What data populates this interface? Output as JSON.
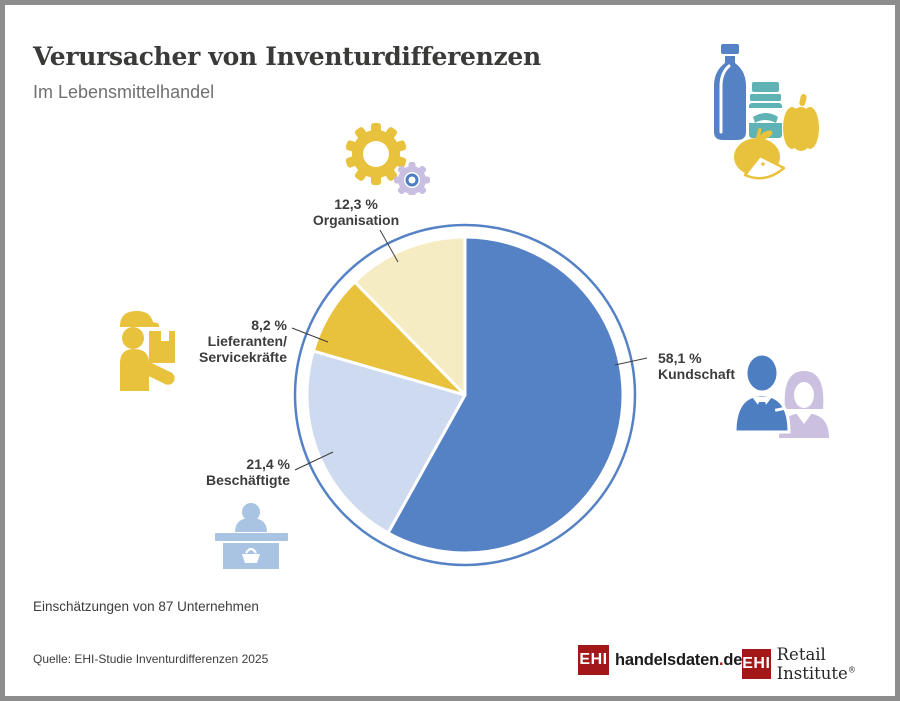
{
  "header": {
    "title": "Verursacher von Inventurdifferenzen",
    "subtitle": "Im Lebensmittelhandel"
  },
  "chart_data": {
    "type": "pie",
    "title": "Verursacher von Inventurdifferenzen",
    "subtitle": "Im Lebensmittelhandel",
    "unit": "percent",
    "start_angle": "top",
    "direction": "clockwise",
    "slices": [
      {
        "label": "Kundschaft",
        "value": 58.1,
        "display": "58,1 %",
        "color": "#5582c5"
      },
      {
        "label": "Beschäftigte",
        "value": 21.4,
        "display": "21,4 %",
        "color": "#cedaef"
      },
      {
        "label": "Lieferanten/Servicekräfte",
        "label_lines": [
          "Lieferanten/",
          "Servicekräfte"
        ],
        "value": 8.2,
        "display": "8,2 %",
        "color": "#e8c23c"
      },
      {
        "label": "Organisation",
        "value": 12.3,
        "display": "12,3 %",
        "color": "#f6ecc4"
      }
    ],
    "outer_ring_color": "#5582c5",
    "legend": "none",
    "labels_outside_with_leader_lines": true
  },
  "icons": {
    "organisation": "gears-icon",
    "top_right": "groceries-icon",
    "lieferanten": "delivery-worker-icon",
    "beschaeftigte": "cashier-icon",
    "kundschaft": "customers-icon"
  },
  "footer": {
    "note": "Einschätzungen von 87 Unternehmen",
    "source": "Quelle: EHI-Studie Inventurdifferenzen 2025"
  },
  "logos": {
    "handelsdaten": {
      "badge": "EHI",
      "name": "handelsdaten",
      "dot": ".",
      "tld": "de"
    },
    "retail_institute": {
      "badge": "EHI",
      "name": "Retail Institute",
      "registered": "®"
    }
  },
  "colors": {
    "accent_blue": "#5582c5",
    "light_blue": "#cedaef",
    "cashier_blue": "#a9c3e2",
    "yellow": "#e8c23c",
    "cream": "#f6ecc4",
    "lavender": "#cbc0df",
    "teal": "#5fb3b5",
    "logo_red": "#a21818",
    "text_dark": "#3c3c3b",
    "subtitle_gray": "#71706f",
    "frame_gray": "#8d8d8d"
  }
}
